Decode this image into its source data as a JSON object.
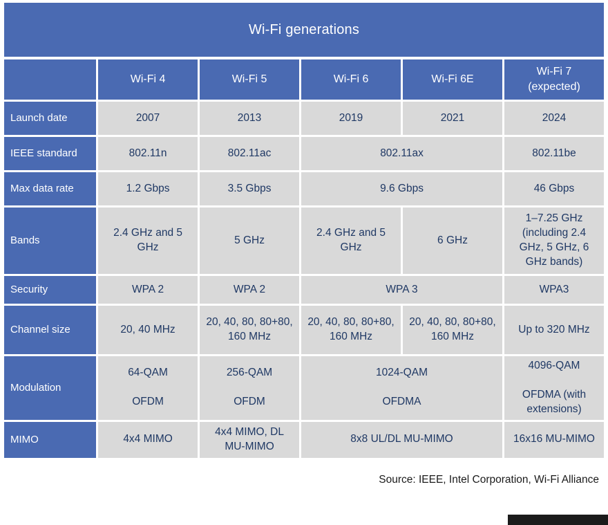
{
  "chart_data": {
    "type": "table",
    "title": "Wi-Fi generations",
    "column_headers": [
      "",
      "Wi-Fi 4",
      "Wi-Fi 5",
      "Wi-Fi 6",
      "Wi-Fi 6E",
      "Wi-Fi 7\n(expected)"
    ],
    "rows": [
      {
        "label": "Launch date",
        "cells": [
          {
            "text": "2007"
          },
          {
            "text": "2013"
          },
          {
            "text": "2019"
          },
          {
            "text": "2021"
          },
          {
            "text": "2024"
          }
        ]
      },
      {
        "label": "IEEE standard",
        "cells": [
          {
            "text": "802.11n"
          },
          {
            "text": "802.11ac"
          },
          {
            "text": "802.11ax",
            "colspan": 2
          },
          {
            "text": "802.11be"
          }
        ]
      },
      {
        "label": "Max data rate",
        "cells": [
          {
            "text": "1.2 Gbps"
          },
          {
            "text": "3.5 Gbps"
          },
          {
            "text": "9.6 Gbps",
            "colspan": 2
          },
          {
            "text": "46 Gbps"
          }
        ]
      },
      {
        "label": "Bands",
        "cells": [
          {
            "text": "2.4 GHz and 5 GHz"
          },
          {
            "text": "5 GHz"
          },
          {
            "text": "2.4 GHz and 5 GHz"
          },
          {
            "text": "6 GHz"
          },
          {
            "text": "1–7.25 GHz (including 2.4 GHz, 5 GHz, 6 GHz bands)"
          }
        ]
      },
      {
        "label": "Security",
        "cells": [
          {
            "text": "WPA 2"
          },
          {
            "text": "WPA 2"
          },
          {
            "text": "WPA 3",
            "colspan": 2
          },
          {
            "text": "WPA3"
          }
        ]
      },
      {
        "label": "Channel size",
        "cells": [
          {
            "text": "20, 40 MHz"
          },
          {
            "text": "20, 40, 80, 80+80, 160 MHz"
          },
          {
            "text": "20, 40, 80, 80+80, 160 MHz"
          },
          {
            "text": "20, 40, 80, 80+80, 160 MHz"
          },
          {
            "text": "Up to 320 MHz"
          }
        ]
      },
      {
        "label": "Modulation",
        "cells": [
          {
            "text": "64-QAM\n\nOFDM"
          },
          {
            "text": "256-QAM\n\nOFDM"
          },
          {
            "text": "1024-QAM\n\nOFDMA",
            "colspan": 2
          },
          {
            "text": "4096-QAM\n\nOFDMA (with extensions)"
          }
        ]
      },
      {
        "label": "MIMO",
        "cells": [
          {
            "text": "4x4 MIMO"
          },
          {
            "text": "4x4 MIMO, DL MU-MIMO"
          },
          {
            "text": "8x8 UL/DL MU-MIMO",
            "colspan": 2
          },
          {
            "text": "16x16 MU-MIMO"
          }
        ]
      }
    ],
    "source": "Source: IEEE, Intel Corporation, Wi-Fi Alliance",
    "colors": {
      "header_blue": "#4a6ab2",
      "cell_gray": "#d9d9d9",
      "cell_text": "#1f3864",
      "title_text": "#ffffff"
    }
  }
}
